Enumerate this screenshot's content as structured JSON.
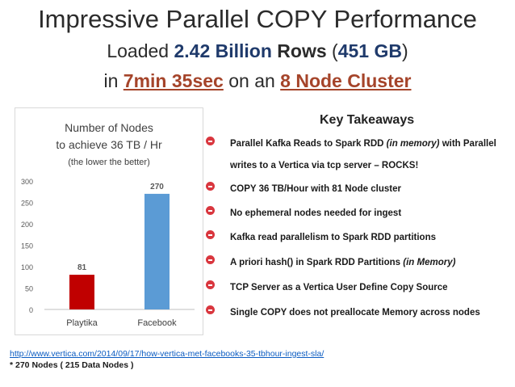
{
  "slide": {
    "title": "Impressive Parallel COPY Performance",
    "sub1_pre": "Loaded ",
    "sub1_rows": "2.42 Billion",
    "sub1_rows_word": " Rows",
    "sub1_paren_open": " (",
    "sub1_size": "451 GB",
    "sub1_paren_close": ")",
    "sub2_pre": "in ",
    "sub2_time": "7min 35sec",
    "sub2_mid": " on an ",
    "sub2_cluster": "8 Node Cluster"
  },
  "takeaways": {
    "heading": "Key Takeaways",
    "items": [
      {
        "text": "Parallel Kafka Reads to Spark RDD ",
        "em": "(in memory)",
        "tail": " with Parallel writes to a Vertica via tcp server – ROCKS!"
      },
      {
        "text": "COPY 36 TB/Hour with 81 Node cluster",
        "em": "",
        "tail": ""
      },
      {
        "text": "No ephemeral nodes needed for ingest",
        "em": "",
        "tail": ""
      },
      {
        "text": "Kafka read parallelism to Spark RDD partitions",
        "em": "",
        "tail": ""
      },
      {
        "text": "A priori hash() in Spark RDD Partitions ",
        "em": "(in Memory)",
        "tail": ""
      },
      {
        "text": "TCP Server as a Vertica User Define Copy Source",
        "em": "",
        "tail": ""
      },
      {
        "text": "Single COPY does not preallocate Memory across nodes",
        "em": "",
        "tail": ""
      }
    ]
  },
  "footer": {
    "link": "http://www.vertica.com/2014/09/17/how-vertica-met-facebooks-35-tbhour-ingest-sla/",
    "note": "* 270 Nodes ( 215 Data Nodes )"
  },
  "chart_data": {
    "type": "bar",
    "title_line1": "Number of Nodes",
    "title_line2": "to achieve 36 TB / Hr",
    "subtitle": "(the lower the better)",
    "categories": [
      "Playtika",
      "Facebook"
    ],
    "values": [
      81,
      270
    ],
    "value_labels": [
      "81",
      "270"
    ],
    "colors": [
      "#c00000",
      "#5b9bd5"
    ],
    "ylim": [
      0,
      300
    ],
    "yticks": [
      0,
      50,
      100,
      150,
      200,
      250,
      300
    ],
    "grid": false,
    "legend": "none"
  }
}
